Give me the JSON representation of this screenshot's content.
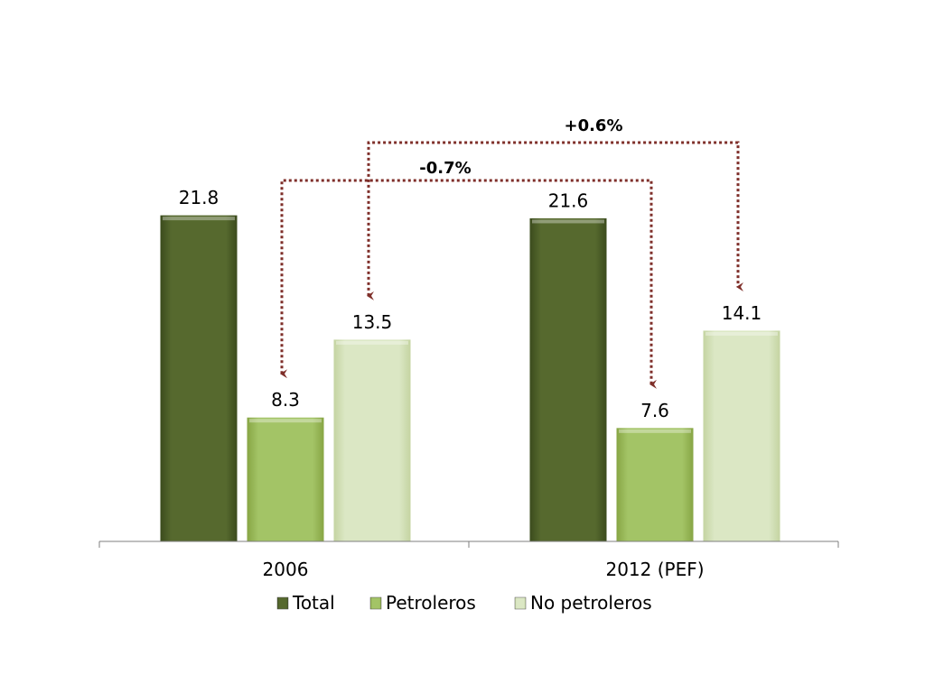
{
  "chart_data": {
    "type": "bar",
    "categories": [
      "2006",
      "2012 (PEF)"
    ],
    "series": [
      {
        "name": "Total",
        "values": [
          21.8,
          21.6
        ],
        "color": "#4f6228"
      },
      {
        "name": "Petroleros",
        "values": [
          8.3,
          7.6
        ],
        "color": "#9bbb59"
      },
      {
        "name": "No petroleros",
        "values": [
          13.5,
          14.1
        ],
        "color": "#d7e4bd"
      }
    ],
    "data_labels": [
      [
        "21.8",
        "21.6"
      ],
      [
        "8.3",
        "7.6"
      ],
      [
        "13.5",
        "14.1"
      ]
    ],
    "annotations": [
      {
        "text": "+0.6%",
        "series": "No petroleros",
        "from": "2006",
        "to": "2012 (PEF)"
      },
      {
        "text": "-0.7%",
        "series": "Petroleros",
        "from": "2006",
        "to": "2012 (PEF)"
      }
    ],
    "arrow_color": "#7f2f2a",
    "ylim": [
      0,
      25
    ],
    "grid": false,
    "legend_position": "bottom"
  }
}
